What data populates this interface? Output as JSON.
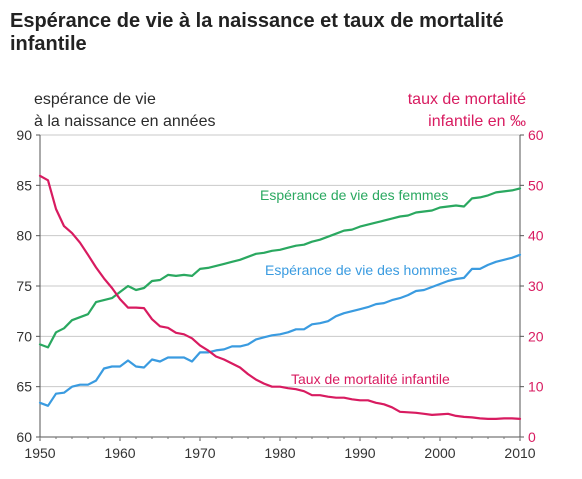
{
  "chart_data": {
    "type": "line",
    "title": "Espérance de vie à la naissance et taux de mortalité infantile",
    "ylabel_left": [
      "espérance de vie",
      "à la naissance en années"
    ],
    "ylabel_right": [
      "taux de mortalité",
      "infantile en ‰"
    ],
    "xlim": [
      1950,
      2010
    ],
    "ylim_left": [
      60,
      90
    ],
    "ylim_right": [
      0,
      60
    ],
    "x_ticks": [
      "1950",
      "1960",
      "1970",
      "1980",
      "1990",
      "2000",
      "2010"
    ],
    "y_left_ticks": [
      "60",
      "65",
      "70",
      "75",
      "80",
      "85",
      "90"
    ],
    "y_right_ticks": [
      "0",
      "10",
      "20",
      "30",
      "40",
      "50",
      "60"
    ],
    "grid": "horizontal",
    "series": [
      {
        "name": "Espérance de vie des femmes",
        "axis": "left",
        "color": "#2aa860",
        "x": [
          1950,
          1951,
          1952,
          1953,
          1954,
          1955,
          1956,
          1957,
          1958,
          1959,
          1960,
          1961,
          1962,
          1963,
          1964,
          1965,
          1966,
          1967,
          1968,
          1969,
          1970,
          1971,
          1972,
          1973,
          1974,
          1975,
          1976,
          1977,
          1978,
          1979,
          1980,
          1981,
          1982,
          1983,
          1984,
          1985,
          1986,
          1987,
          1988,
          1989,
          1990,
          1991,
          1992,
          1993,
          1994,
          1995,
          1996,
          1997,
          1998,
          1999,
          2000,
          2001,
          2002,
          2003,
          2004,
          2005,
          2006,
          2007,
          2008,
          2009,
          2010
        ],
        "values": [
          69.2,
          68.9,
          70.4,
          70.8,
          71.6,
          71.9,
          72.2,
          73.4,
          73.6,
          73.8,
          74.4,
          75.0,
          74.6,
          74.8,
          75.5,
          75.6,
          76.1,
          76.0,
          76.1,
          76.0,
          76.7,
          76.8,
          77.0,
          77.2,
          77.4,
          77.6,
          77.9,
          78.2,
          78.3,
          78.5,
          78.6,
          78.8,
          79.0,
          79.1,
          79.4,
          79.6,
          79.9,
          80.2,
          80.5,
          80.6,
          80.9,
          81.1,
          81.3,
          81.5,
          81.7,
          81.9,
          82.0,
          82.3,
          82.4,
          82.5,
          82.8,
          82.9,
          83.0,
          82.9,
          83.7,
          83.8,
          84.0,
          84.3,
          84.4,
          84.5,
          84.7
        ]
      },
      {
        "name": "Espérance de vie des hommes",
        "axis": "left",
        "color": "#3a9be0",
        "x": [
          1950,
          1951,
          1952,
          1953,
          1954,
          1955,
          1956,
          1957,
          1958,
          1959,
          1960,
          1961,
          1962,
          1963,
          1964,
          1965,
          1966,
          1967,
          1968,
          1969,
          1970,
          1971,
          1972,
          1973,
          1974,
          1975,
          1976,
          1977,
          1978,
          1979,
          1980,
          1981,
          1982,
          1983,
          1984,
          1985,
          1986,
          1987,
          1988,
          1989,
          1990,
          1991,
          1992,
          1993,
          1994,
          1995,
          1996,
          1997,
          1998,
          1999,
          2000,
          2001,
          2002,
          2003,
          2004,
          2005,
          2006,
          2007,
          2008,
          2009,
          2010
        ],
        "values": [
          63.4,
          63.1,
          64.3,
          64.4,
          65.0,
          65.2,
          65.2,
          65.6,
          66.8,
          67.0,
          67.0,
          67.6,
          67.0,
          66.9,
          67.7,
          67.5,
          67.9,
          67.9,
          67.9,
          67.5,
          68.4,
          68.4,
          68.6,
          68.7,
          69.0,
          69.0,
          69.2,
          69.7,
          69.9,
          70.1,
          70.2,
          70.4,
          70.7,
          70.7,
          71.2,
          71.3,
          71.5,
          72.0,
          72.3,
          72.5,
          72.7,
          72.9,
          73.2,
          73.3,
          73.6,
          73.8,
          74.1,
          74.5,
          74.6,
          74.9,
          75.2,
          75.5,
          75.7,
          75.8,
          76.7,
          76.7,
          77.1,
          77.4,
          77.6,
          77.8,
          78.1
        ]
      },
      {
        "name": "Taux de mortalité infantile",
        "axis": "right",
        "color": "#d81b60",
        "x": [
          1950,
          1951,
          1952,
          1953,
          1954,
          1955,
          1956,
          1957,
          1958,
          1959,
          1960,
          1961,
          1962,
          1963,
          1964,
          1965,
          1966,
          1967,
          1968,
          1969,
          1970,
          1971,
          1972,
          1973,
          1974,
          1975,
          1976,
          1977,
          1978,
          1979,
          1980,
          1981,
          1982,
          1983,
          1984,
          1985,
          1986,
          1987,
          1988,
          1989,
          1990,
          1991,
          1992,
          1993,
          1994,
          1995,
          1996,
          1997,
          1998,
          1999,
          2000,
          2001,
          2002,
          2003,
          2004,
          2005,
          2006,
          2007,
          2008,
          2009,
          2010
        ],
        "values": [
          51.9,
          51.0,
          45.3,
          41.9,
          40.5,
          38.6,
          36.2,
          33.7,
          31.5,
          29.6,
          27.4,
          25.7,
          25.7,
          25.6,
          23.4,
          22.0,
          21.7,
          20.7,
          20.4,
          19.6,
          18.2,
          17.2,
          16.0,
          15.4,
          14.6,
          13.8,
          12.5,
          11.4,
          10.6,
          10.0,
          10.0,
          9.7,
          9.5,
          9.1,
          8.3,
          8.3,
          8.0,
          7.8,
          7.8,
          7.5,
          7.3,
          7.3,
          6.8,
          6.5,
          5.9,
          5.0,
          4.9,
          4.8,
          4.6,
          4.4,
          4.5,
          4.6,
          4.2,
          4.0,
          3.9,
          3.7,
          3.6,
          3.6,
          3.7,
          3.7,
          3.6
        ]
      }
    ],
    "series_labels": [
      {
        "text": "Espérance de vie des femmes",
        "color": "#2aa860"
      },
      {
        "text": "Espérance de vie des hommes",
        "color": "#3a9be0"
      },
      {
        "text": "Taux de mortalité infantile",
        "color": "#d81b60"
      }
    ]
  }
}
